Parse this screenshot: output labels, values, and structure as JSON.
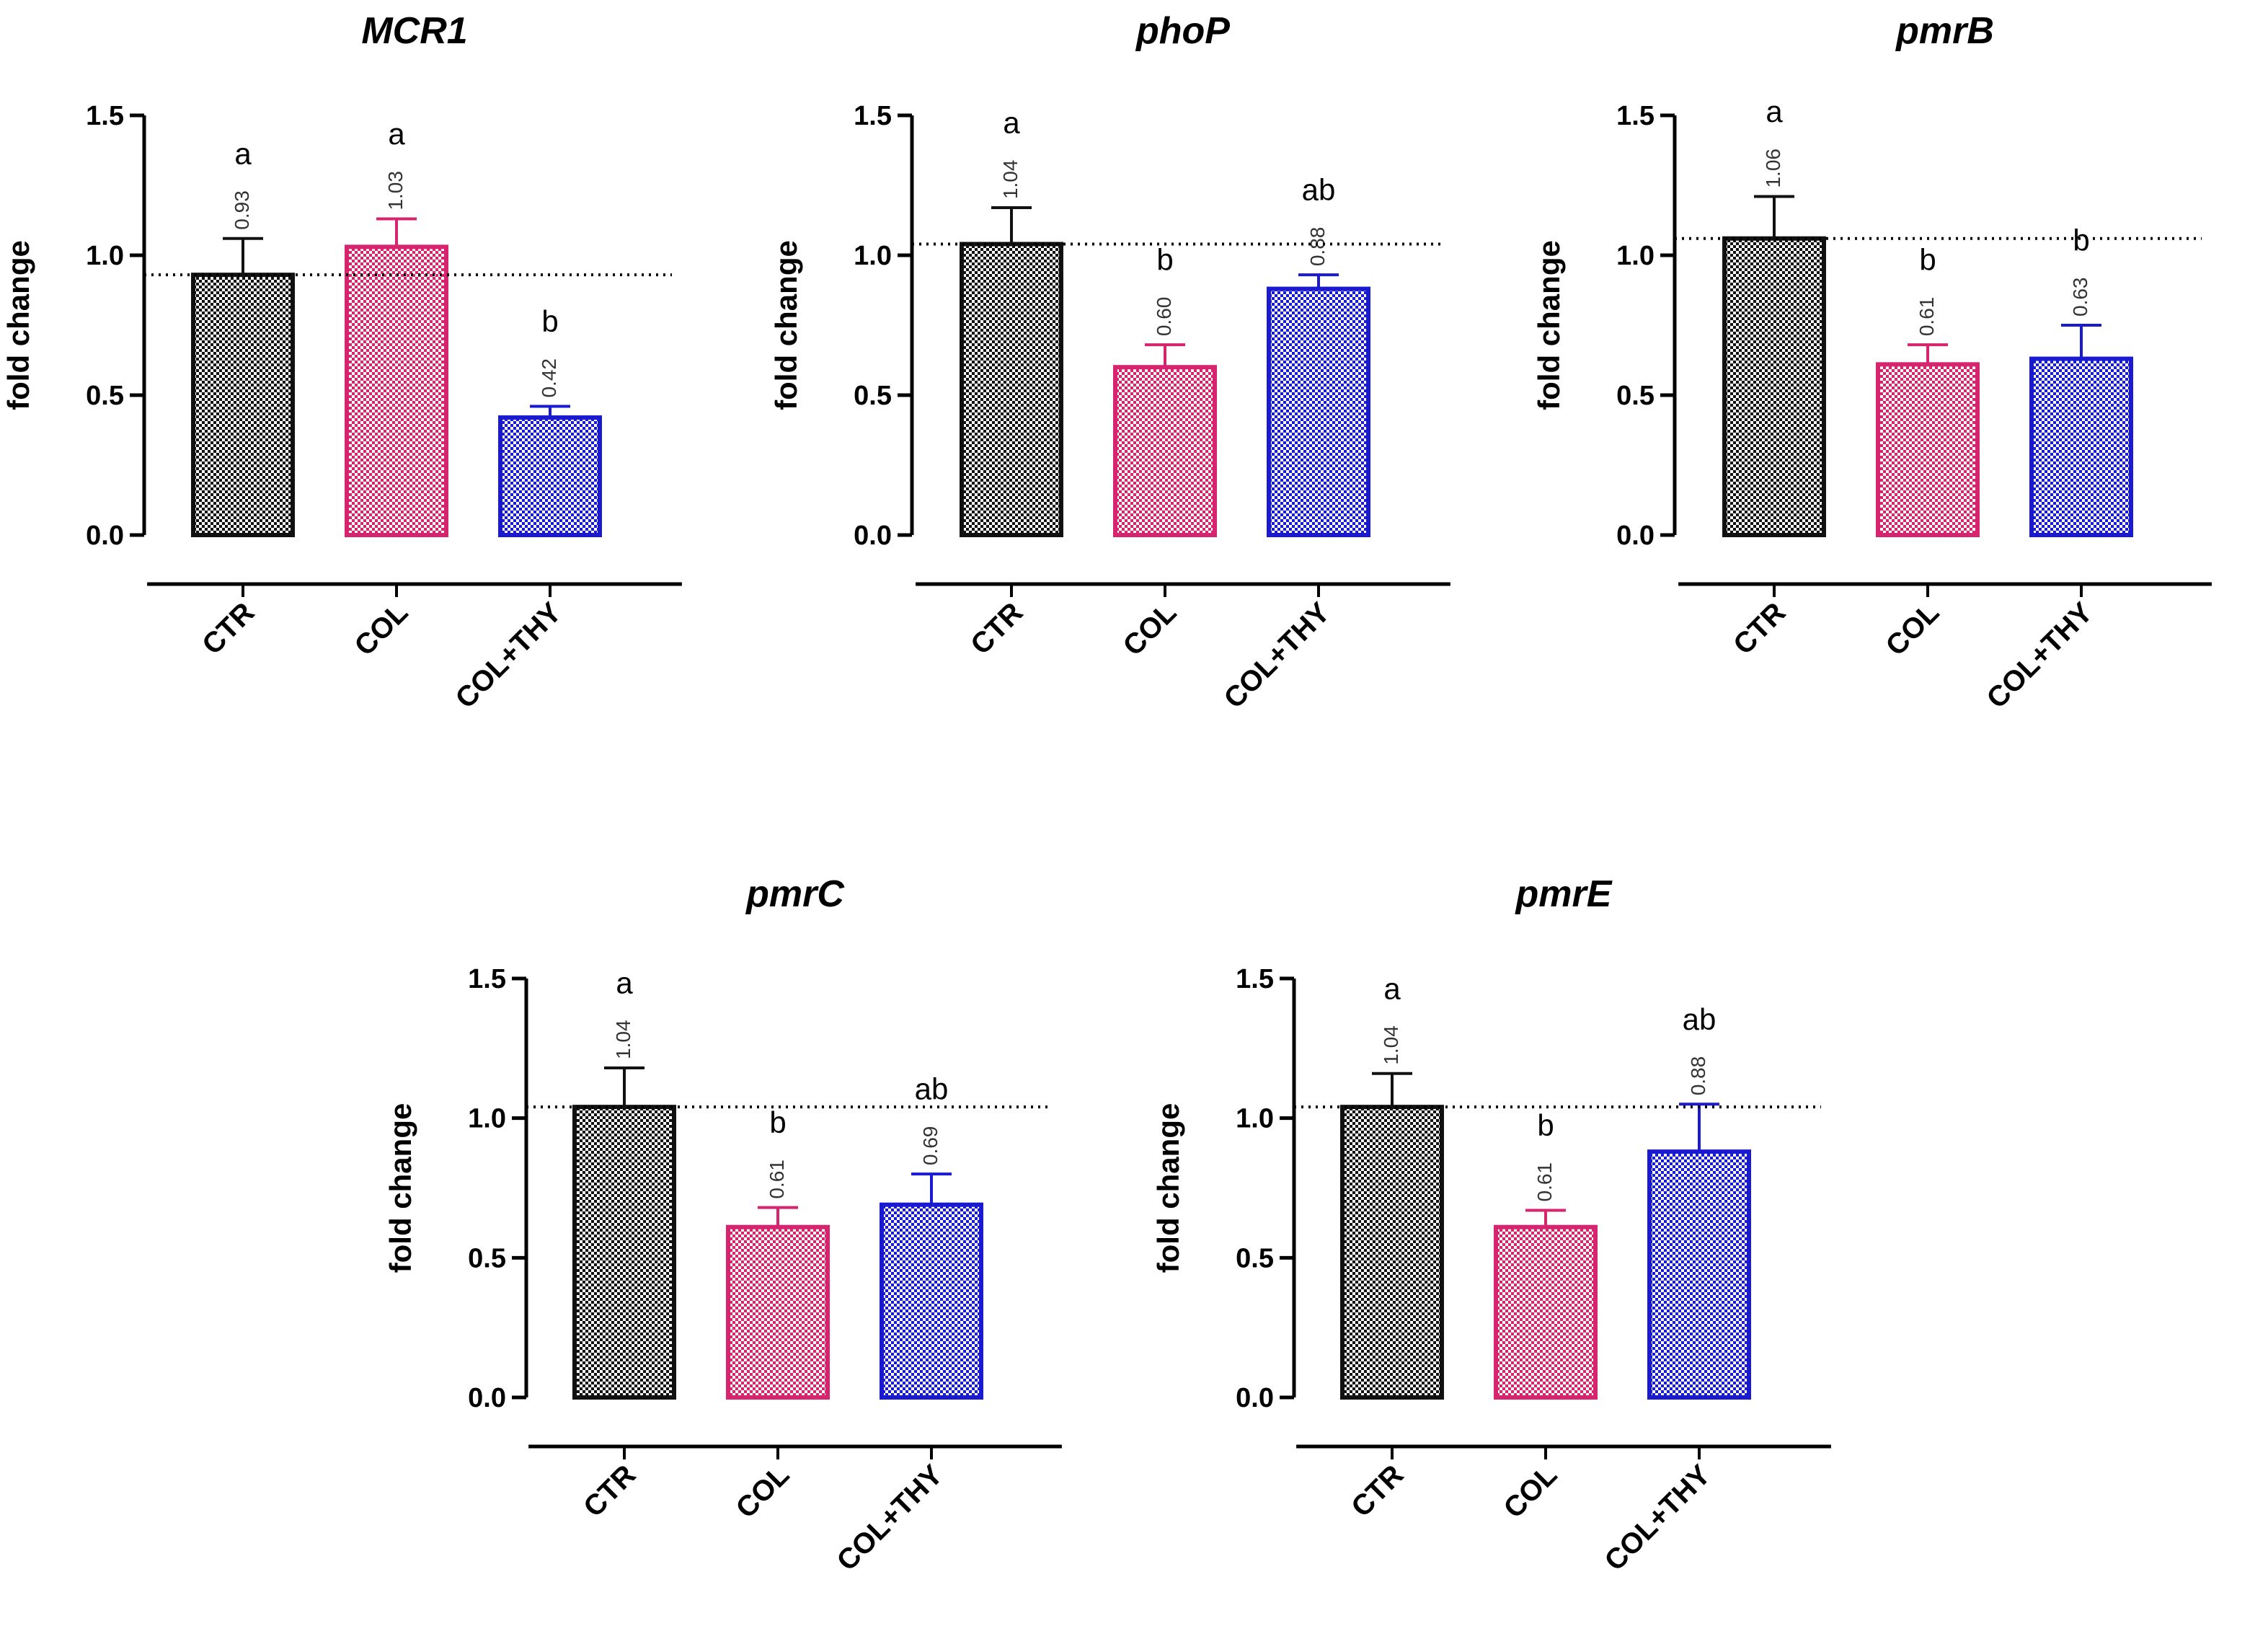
{
  "colors": {
    "CTR": "#111111",
    "COL": "#d6246e",
    "COL+THY": "#1a1ad0"
  },
  "chart_data": [
    {
      "type": "bar",
      "title": "MCR1",
      "ylabel": "fold change",
      "ylim": [
        0,
        1.5
      ],
      "yticks": [
        "0.0",
        "0.5",
        "1.0",
        "1.5"
      ],
      "categories": [
        "CTR",
        "COL",
        "COL+THY"
      ],
      "values": [
        0.93,
        1.03,
        0.42
      ],
      "error_upper": [
        1.06,
        1.13,
        0.46
      ],
      "value_labels": [
        "0.93",
        "1.03",
        "0.42"
      ],
      "letters": [
        "a",
        "a",
        "b"
      ],
      "reference_line": 0.93
    },
    {
      "type": "bar",
      "title": "phoP",
      "ylabel": "fold change",
      "ylim": [
        0,
        1.5
      ],
      "yticks": [
        "0.0",
        "0.5",
        "1.0",
        "1.5"
      ],
      "categories": [
        "CTR",
        "COL",
        "COL+THY"
      ],
      "values": [
        1.04,
        0.6,
        0.88
      ],
      "error_upper": [
        1.17,
        0.68,
        0.93
      ],
      "value_labels": [
        "1.04",
        "0.60",
        "0.88"
      ],
      "letters": [
        "a",
        "b",
        "ab"
      ],
      "reference_line": 1.04
    },
    {
      "type": "bar",
      "title": "pmrB",
      "ylabel": "fold change",
      "ylim": [
        0,
        1.5
      ],
      "yticks": [
        "0.0",
        "0.5",
        "1.0",
        "1.5"
      ],
      "categories": [
        "CTR",
        "COL",
        "COL+THY"
      ],
      "values": [
        1.06,
        0.61,
        0.63
      ],
      "error_upper": [
        1.21,
        0.68,
        0.75
      ],
      "value_labels": [
        "1.06",
        "0.61",
        "0.63"
      ],
      "letters": [
        "a",
        "b",
        "b"
      ],
      "reference_line": 1.06
    },
    {
      "type": "bar",
      "title": "pmrC",
      "ylabel": "fold change",
      "ylim": [
        0,
        1.5
      ],
      "yticks": [
        "0.0",
        "0.5",
        "1.0",
        "1.5"
      ],
      "categories": [
        "CTR",
        "COL",
        "COL+THY"
      ],
      "values": [
        1.04,
        0.61,
        0.69
      ],
      "error_upper": [
        1.18,
        0.68,
        0.8
      ],
      "value_labels": [
        "1.04",
        "0.61",
        "0.69"
      ],
      "letters": [
        "a",
        "b",
        "ab"
      ],
      "reference_line": 1.04
    },
    {
      "type": "bar",
      "title": "pmrE",
      "ylabel": "fold change",
      "ylim": [
        0,
        1.5
      ],
      "yticks": [
        "0.0",
        "0.5",
        "1.0",
        "1.5"
      ],
      "categories": [
        "CTR",
        "COL",
        "COL+THY"
      ],
      "values": [
        1.04,
        0.61,
        0.88
      ],
      "error_upper": [
        1.16,
        0.67,
        1.05
      ],
      "value_labels": [
        "1.04",
        "0.61",
        "0.88"
      ],
      "letters": [
        "a",
        "b",
        "ab"
      ],
      "reference_line": 1.04
    }
  ]
}
